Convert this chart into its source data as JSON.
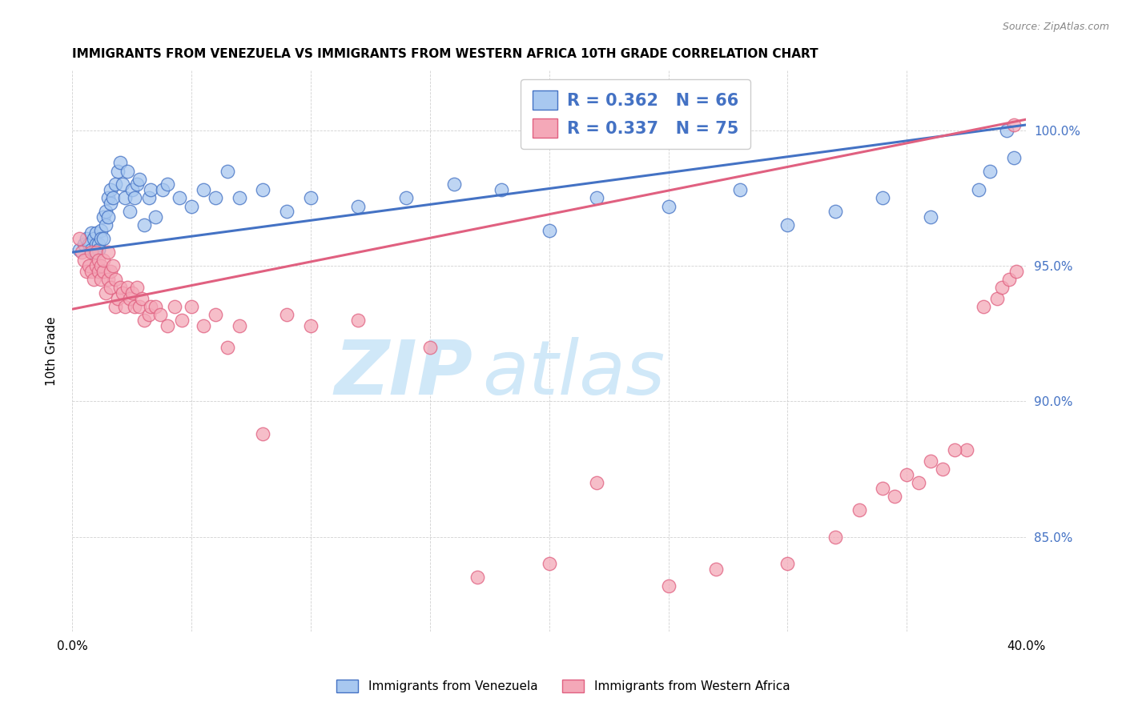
{
  "title": "IMMIGRANTS FROM VENEZUELA VS IMMIGRANTS FROM WESTERN AFRICA 10TH GRADE CORRELATION CHART",
  "source": "Source: ZipAtlas.com",
  "ylabel": "10th Grade",
  "ytick_labels": [
    "85.0%",
    "90.0%",
    "95.0%",
    "100.0%"
  ],
  "ytick_values": [
    0.85,
    0.9,
    0.95,
    1.0
  ],
  "xlim": [
    0.0,
    0.4
  ],
  "ylim": [
    0.815,
    1.022
  ],
  "legend_blue_label": "Immigrants from Venezuela",
  "legend_pink_label": "Immigrants from Western Africa",
  "R_blue": "R = 0.362",
  "N_blue": "N = 66",
  "R_pink": "R = 0.337",
  "N_pink": "N = 75",
  "color_blue": "#A8C8F0",
  "color_pink": "#F4A8B8",
  "color_blue_line": "#4472C4",
  "color_pink_line": "#E06080",
  "color_text_blue": "#4472C4",
  "watermark_zip": "ZIP",
  "watermark_atlas": "atlas",
  "watermark_color": "#D0E8F8",
  "blue_line_x0": 0.0,
  "blue_line_y0": 0.955,
  "blue_line_x1": 0.4,
  "blue_line_y1": 1.002,
  "pink_line_x0": 0.0,
  "pink_line_y0": 0.934,
  "pink_line_x1": 0.4,
  "pink_line_y1": 1.004,
  "blue_x": [
    0.003,
    0.005,
    0.006,
    0.007,
    0.008,
    0.008,
    0.009,
    0.009,
    0.01,
    0.01,
    0.01,
    0.011,
    0.011,
    0.012,
    0.012,
    0.013,
    0.013,
    0.014,
    0.014,
    0.015,
    0.015,
    0.016,
    0.016,
    0.017,
    0.018,
    0.019,
    0.02,
    0.021,
    0.022,
    0.023,
    0.024,
    0.025,
    0.026,
    0.027,
    0.028,
    0.03,
    0.032,
    0.033,
    0.035,
    0.038,
    0.04,
    0.045,
    0.05,
    0.055,
    0.06,
    0.065,
    0.07,
    0.08,
    0.09,
    0.1,
    0.12,
    0.14,
    0.16,
    0.18,
    0.2,
    0.22,
    0.25,
    0.28,
    0.3,
    0.32,
    0.34,
    0.36,
    0.38,
    0.385,
    0.392,
    0.395
  ],
  "blue_y": [
    0.956,
    0.958,
    0.96,
    0.958,
    0.956,
    0.962,
    0.955,
    0.96,
    0.955,
    0.958,
    0.962,
    0.958,
    0.956,
    0.963,
    0.96,
    0.96,
    0.968,
    0.965,
    0.97,
    0.968,
    0.975,
    0.973,
    0.978,
    0.975,
    0.98,
    0.985,
    0.988,
    0.98,
    0.975,
    0.985,
    0.97,
    0.978,
    0.975,
    0.98,
    0.982,
    0.965,
    0.975,
    0.978,
    0.968,
    0.978,
    0.98,
    0.975,
    0.972,
    0.978,
    0.975,
    0.985,
    0.975,
    0.978,
    0.97,
    0.975,
    0.972,
    0.975,
    0.98,
    0.978,
    0.963,
    0.975,
    0.972,
    0.978,
    0.965,
    0.97,
    0.975,
    0.968,
    0.978,
    0.985,
    1.0,
    0.99
  ],
  "pink_x": [
    0.003,
    0.004,
    0.005,
    0.006,
    0.007,
    0.008,
    0.008,
    0.009,
    0.01,
    0.01,
    0.011,
    0.011,
    0.012,
    0.012,
    0.013,
    0.013,
    0.014,
    0.015,
    0.015,
    0.016,
    0.016,
    0.017,
    0.018,
    0.018,
    0.019,
    0.02,
    0.021,
    0.022,
    0.023,
    0.024,
    0.025,
    0.026,
    0.027,
    0.028,
    0.029,
    0.03,
    0.032,
    0.033,
    0.035,
    0.037,
    0.04,
    0.043,
    0.046,
    0.05,
    0.055,
    0.06,
    0.065,
    0.07,
    0.08,
    0.09,
    0.1,
    0.12,
    0.15,
    0.17,
    0.2,
    0.22,
    0.25,
    0.27,
    0.3,
    0.32,
    0.33,
    0.345,
    0.355,
    0.365,
    0.375,
    0.382,
    0.388,
    0.39,
    0.393,
    0.396,
    0.34,
    0.35,
    0.36,
    0.37,
    0.395
  ],
  "pink_y": [
    0.96,
    0.955,
    0.952,
    0.948,
    0.95,
    0.948,
    0.955,
    0.945,
    0.95,
    0.955,
    0.948,
    0.952,
    0.945,
    0.95,
    0.948,
    0.952,
    0.94,
    0.945,
    0.955,
    0.948,
    0.942,
    0.95,
    0.935,
    0.945,
    0.938,
    0.942,
    0.94,
    0.935,
    0.942,
    0.938,
    0.94,
    0.935,
    0.942,
    0.935,
    0.938,
    0.93,
    0.932,
    0.935,
    0.935,
    0.932,
    0.928,
    0.935,
    0.93,
    0.935,
    0.928,
    0.932,
    0.92,
    0.928,
    0.888,
    0.932,
    0.928,
    0.93,
    0.92,
    0.835,
    0.84,
    0.87,
    0.832,
    0.838,
    0.84,
    0.85,
    0.86,
    0.865,
    0.87,
    0.875,
    0.882,
    0.935,
    0.938,
    0.942,
    0.945,
    0.948,
    0.868,
    0.873,
    0.878,
    0.882,
    1.002
  ]
}
